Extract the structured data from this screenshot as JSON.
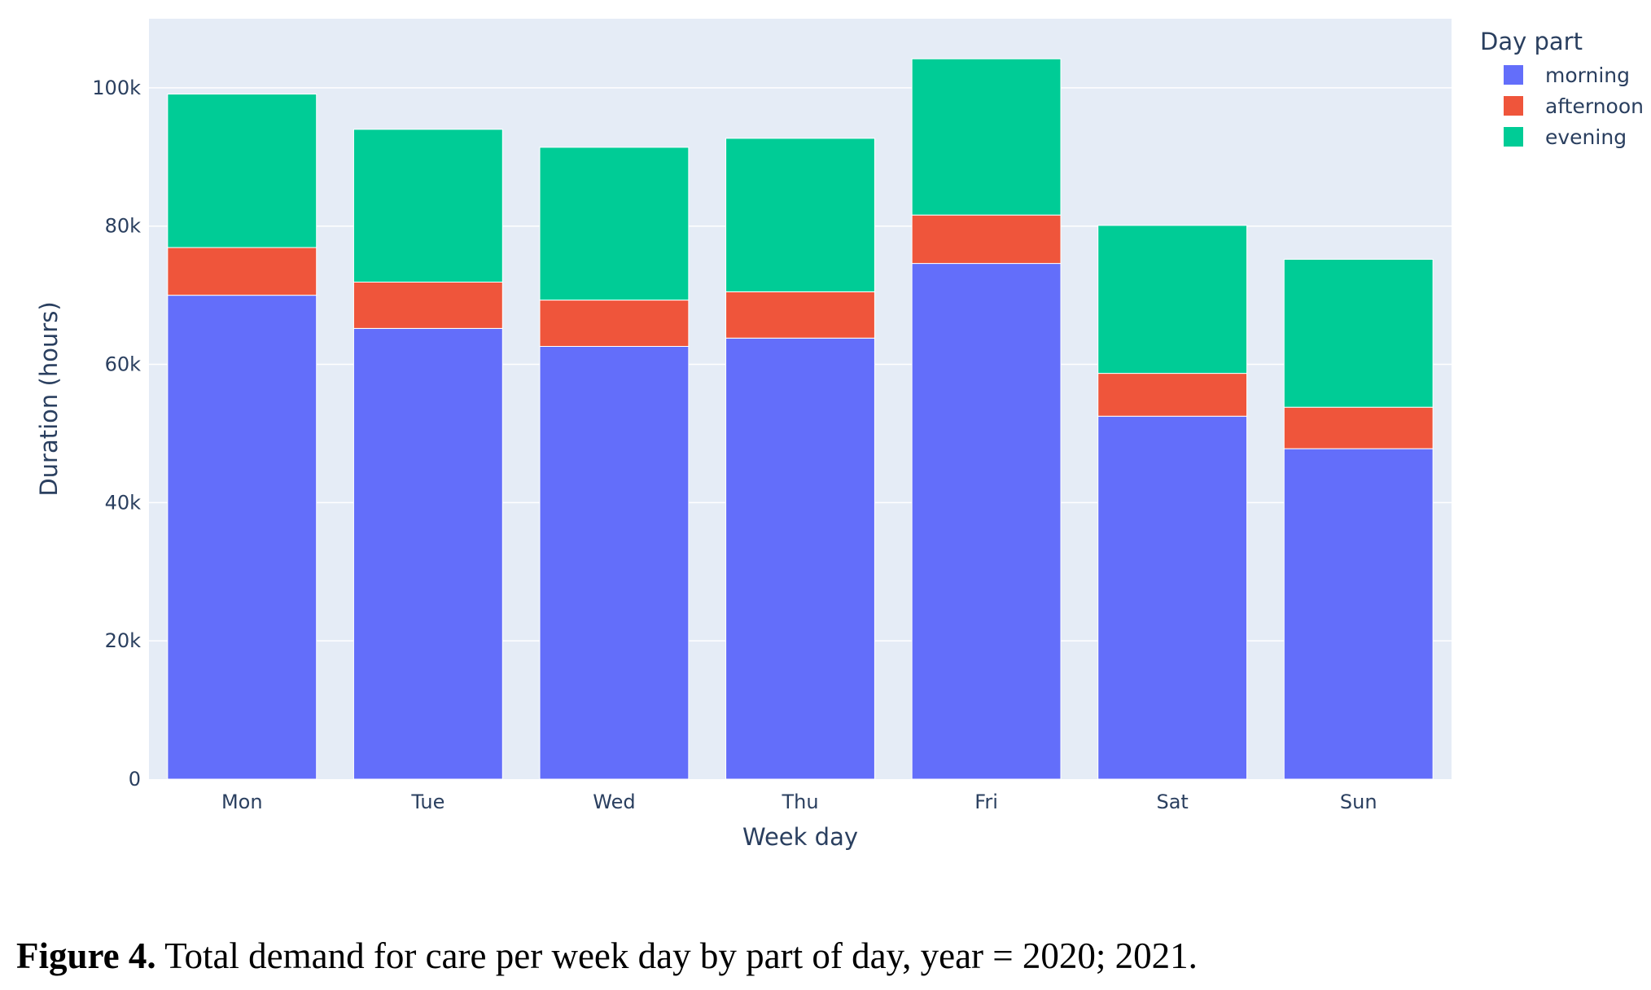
{
  "chart_data": {
    "type": "bar",
    "stacked": true,
    "categories": [
      "Mon",
      "Tue",
      "Wed",
      "Thu",
      "Fri",
      "Sat",
      "Sun"
    ],
    "series": [
      {
        "name": "morning",
        "color": "#636efa",
        "values": [
          70000,
          65200,
          62600,
          63800,
          74600,
          52500,
          47800
        ]
      },
      {
        "name": "afternoon",
        "color": "#ef553b",
        "values": [
          6900,
          6700,
          6700,
          6700,
          7000,
          6200,
          6000
        ]
      },
      {
        "name": "evening",
        "color": "#00cc96",
        "values": [
          22200,
          22100,
          22100,
          22200,
          22600,
          21400,
          21400
        ]
      }
    ],
    "xlabel": "Week day",
    "ylabel": "Duration (hours)",
    "ylim": [
      0,
      110000
    ],
    "yticks": [
      0,
      20000,
      40000,
      60000,
      80000,
      100000
    ],
    "ytick_labels": [
      "0",
      "20k",
      "40k",
      "60k",
      "80k",
      "100k"
    ],
    "legend_title": "Day part",
    "legend_position": "top-right",
    "grid": true,
    "plot_background": "#e5ecf6"
  },
  "caption": {
    "label": "Figure 4.",
    "text": " Total demand for care per week day by part of day, year = 2020; 2021."
  }
}
